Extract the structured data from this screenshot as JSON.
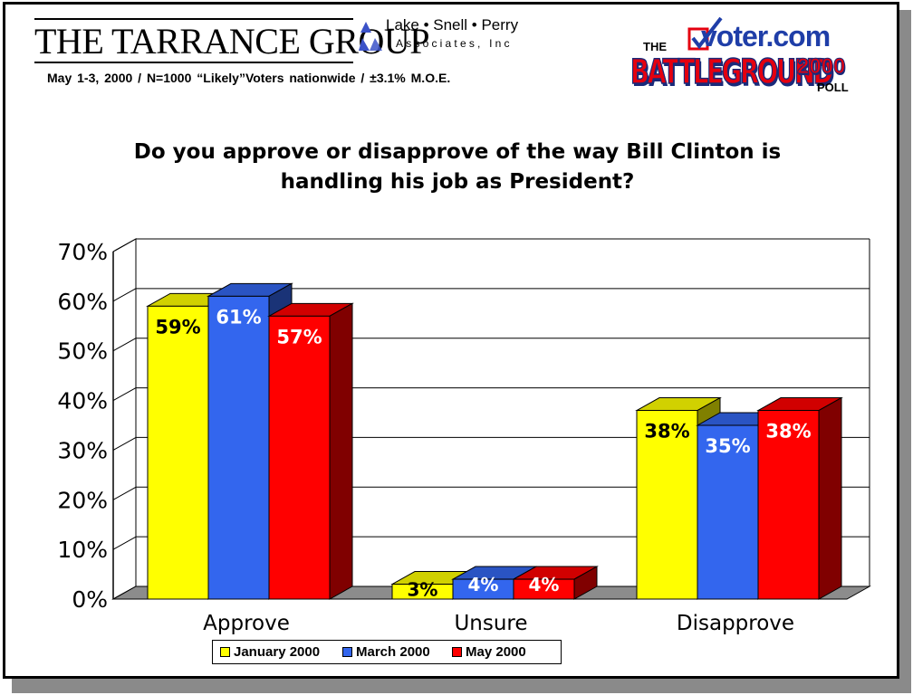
{
  "header": {
    "tarrance_logo": "THE TARRANCE GROUP",
    "lsp_name": "Lake • Snell • Perry",
    "lsp_sub": "Associates, Inc",
    "survey_info": "May 1-3, 2000 / N=1000 “Likely”Voters nationwide / ±3.1% M.O.E.",
    "voter_logo": {
      "the": "THE",
      "site": "voter.com",
      "battleground": "BATTLEGROUND",
      "year": "2000",
      "poll": "POLL"
    }
  },
  "colors": {
    "january": "#ffff00",
    "march": "#3366ee",
    "may": "#ff0000",
    "accent_blue": "#1f3ea8",
    "accent_red": "#e4000f"
  },
  "chart_data": {
    "type": "bar",
    "title": "Do you approve or disapprove of the way Bill Clinton is handling his job as President?",
    "categories": [
      "Approve",
      "Unsure",
      "Disapprove"
    ],
    "series": [
      {
        "name": "January 2000",
        "values": [
          59,
          3,
          38
        ],
        "labels": [
          "59%",
          "3%",
          "38%"
        ],
        "color": "#ffff00"
      },
      {
        "name": "March 2000",
        "values": [
          61,
          4,
          35
        ],
        "labels": [
          "61%",
          "4%",
          "35%"
        ],
        "color": "#3366ee"
      },
      {
        "name": "May 2000",
        "values": [
          57,
          4,
          38
        ],
        "labels": [
          "57%",
          "4%",
          "38%"
        ],
        "color": "#ff0000"
      }
    ],
    "ylim": [
      0,
      70
    ],
    "yticks": [
      "0%",
      "10%",
      "20%",
      "30%",
      "40%",
      "50%",
      "60%",
      "70%"
    ],
    "grid": true,
    "legend_position": "bottom",
    "style": "3d"
  }
}
